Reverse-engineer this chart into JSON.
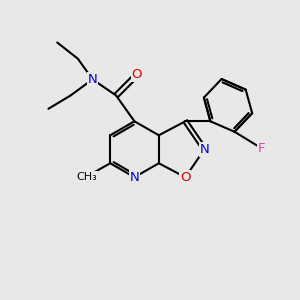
{
  "background_color": "#e8e8e8",
  "bond_color": "#000000",
  "atom_colors": {
    "N": "#0000cc",
    "O": "#dd0000",
    "F": "#dd44aa",
    "C": "#000000"
  },
  "figsize": [
    3.0,
    3.0
  ],
  "dpi": 100,
  "lw": 1.5
}
